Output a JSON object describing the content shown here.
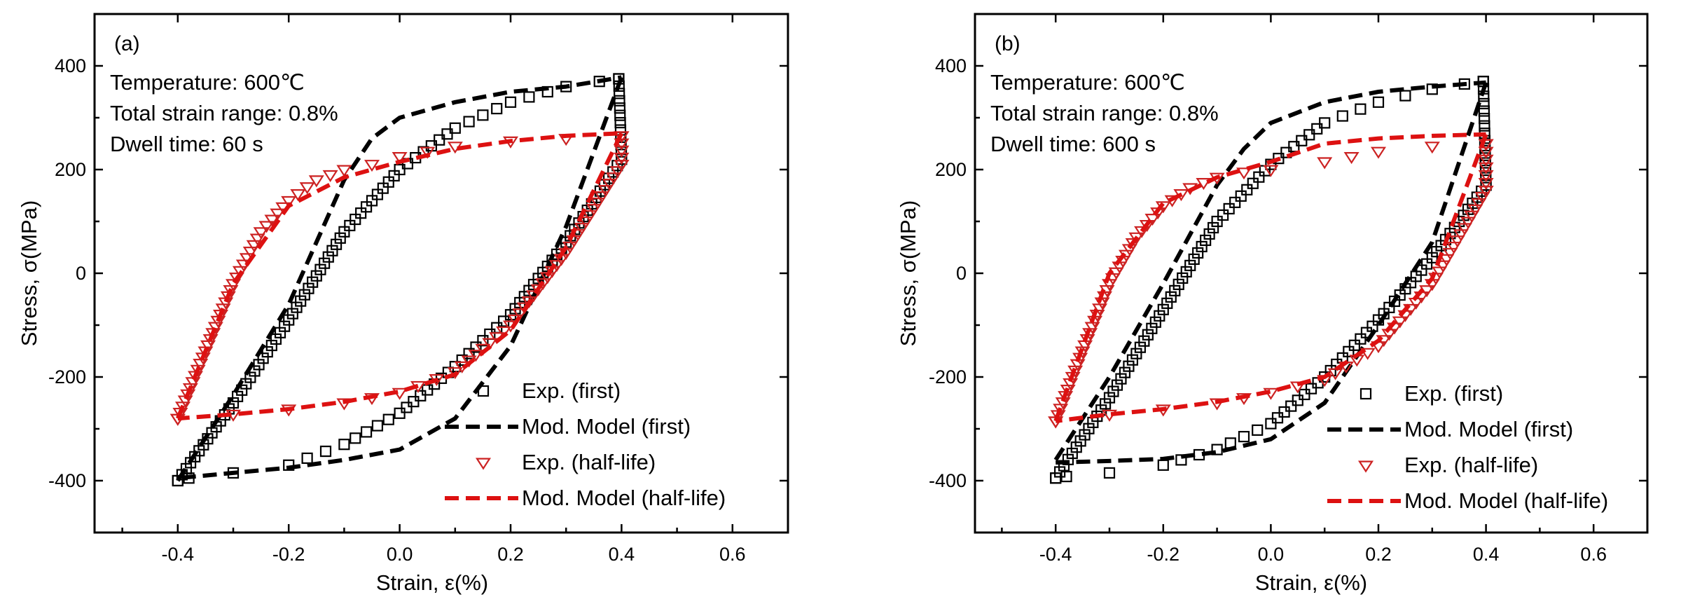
{
  "chart_data": [
    {
      "type": "line",
      "panel_label": "(a)",
      "xlabel": "Strain, ε(%)",
      "ylabel": "Stress, σ(MPa)",
      "xlim": [
        -0.55,
        0.7
      ],
      "ylim": [
        -500,
        500
      ],
      "xticks": [
        -0.4,
        -0.2,
        0.0,
        0.2,
        0.4,
        0.6
      ],
      "xtick_labels": [
        "-0.4",
        "-0.2",
        "0.0",
        "0.2",
        "0.4",
        "0.6"
      ],
      "yticks": [
        -400,
        -200,
        0,
        200,
        400
      ],
      "ytick_labels": [
        "-400",
        "-200",
        "0",
        "200",
        "400"
      ],
      "annotations": [
        "Temperature: 600℃",
        "Total strain range: 0.8%",
        "Dwell time: 60 s"
      ],
      "legend": [
        "Exp. (first)",
        "Mod. Model (first)",
        "Exp. (half-life)",
        "Mod. Model (half-life)"
      ],
      "legend_position": "bottom-right",
      "series": [
        {
          "name": "Exp. (first)",
          "style": "square-marker",
          "color": "#000000",
          "upper": {
            "x": [
              -0.4,
              -0.3,
              -0.2,
              -0.1,
              0.0,
              0.1,
              0.2,
              0.3,
              0.36,
              0.395
            ],
            "y": [
              -400,
              -250,
              -90,
              80,
              200,
              280,
              330,
              360,
              370,
              375
            ]
          },
          "dwell": {
            "x": [
              0.395,
              0.4
            ],
            "y": [
              375,
              220
            ]
          },
          "lower": {
            "x": [
              0.4,
              0.3,
              0.2,
              0.1,
              0.0,
              -0.1,
              -0.2,
              -0.3,
              -0.38,
              -0.4
            ],
            "y": [
              220,
              60,
              -80,
              -180,
              -270,
              -330,
              -370,
              -385,
              -395,
              -400
            ]
          }
        },
        {
          "name": "Mod. Model (first)",
          "style": "dashed",
          "color": "#000000",
          "upper": {
            "x": [
              -0.4,
              -0.3,
              -0.2,
              -0.1,
              -0.05,
              0.0,
              0.1,
              0.2,
              0.3,
              0.4
            ],
            "y": [
              -400,
              -235,
              -60,
              180,
              260,
              300,
              330,
              350,
              360,
              378
            ]
          },
          "lower": {
            "x": [
              0.4,
              0.3,
              0.2,
              0.1,
              0.0,
              -0.1,
              -0.2,
              -0.3,
              -0.4
            ],
            "y": [
              378,
              90,
              -140,
              -280,
              -340,
              -360,
              -375,
              -385,
              -395
            ]
          }
        },
        {
          "name": "Exp. (half-life)",
          "style": "triangle-marker",
          "color": "#cc2222",
          "upper": {
            "x": [
              -0.4,
              -0.35,
              -0.3,
              -0.25,
              -0.2,
              -0.15,
              -0.1,
              -0.05,
              0.0,
              0.1,
              0.2,
              0.3,
              0.4
            ],
            "y": [
              -280,
              -150,
              -20,
              80,
              140,
              180,
              200,
              210,
              225,
              245,
              255,
              260,
              265
            ]
          },
          "dwell": {
            "x": [
              0.4,
              0.4
            ],
            "y": [
              265,
              210
            ]
          },
          "lower": {
            "x": [
              0.4,
              0.3,
              0.2,
              0.1,
              0.0,
              -0.1,
              -0.2,
              -0.3,
              -0.4
            ],
            "y": [
              210,
              40,
              -100,
              -190,
              -230,
              -250,
              -262,
              -272,
              -280
            ]
          }
        },
        {
          "name": "Mod. Model (half-life)",
          "style": "dashed",
          "color": "#dd1111",
          "upper": {
            "x": [
              -0.4,
              -0.3,
              -0.2,
              -0.1,
              0.0,
              0.1,
              0.2,
              0.3,
              0.4
            ],
            "y": [
              -280,
              -20,
              130,
              185,
              215,
              240,
              255,
              265,
              270
            ]
          },
          "lower": {
            "x": [
              0.4,
              0.3,
              0.2,
              0.1,
              0.0,
              -0.1,
              -0.2,
              -0.3,
              -0.4
            ],
            "y": [
              270,
              50,
              -110,
              -195,
              -228,
              -248,
              -262,
              -272,
              -280
            ]
          }
        }
      ]
    },
    {
      "type": "line",
      "panel_label": "(b)",
      "xlabel": "Strain, ε(%)",
      "ylabel": "Stress, σ(MPa)",
      "xlim": [
        -0.55,
        0.7
      ],
      "ylim": [
        -500,
        500
      ],
      "xticks": [
        -0.4,
        -0.2,
        0.0,
        0.2,
        0.4,
        0.6
      ],
      "xtick_labels": [
        "-0.4",
        "-0.2",
        "0.0",
        "0.2",
        "0.4",
        "0.6"
      ],
      "yticks": [
        -400,
        -200,
        0,
        200,
        400
      ],
      "ytick_labels": [
        "-400",
        "-200",
        "0",
        "200",
        "400"
      ],
      "annotations": [
        "Temperature: 600℃",
        "Total strain range: 0.8%",
        "Dwell time: 600 s"
      ],
      "legend": [
        "Exp. (first)",
        "Mod. Model (first)",
        "Exp. (half-life)",
        "Mod. Model (half-life)"
      ],
      "legend_position": "bottom-right",
      "series": [
        {
          "name": "Exp. (first)",
          "style": "square-marker",
          "color": "#000000",
          "upper": {
            "x": [
              -0.4,
              -0.3,
              -0.2,
              -0.1,
              0.0,
              0.1,
              0.2,
              0.3,
              0.36,
              0.395
            ],
            "y": [
              -395,
              -240,
              -70,
              100,
              210,
              290,
              330,
              355,
              365,
              370
            ]
          },
          "dwell": {
            "x": [
              0.395,
              0.4
            ],
            "y": [
              370,
              170
            ]
          },
          "lower": {
            "x": [
              0.4,
              0.3,
              0.2,
              0.1,
              0.0,
              -0.1,
              -0.2,
              -0.3,
              -0.38,
              -0.4
            ],
            "y": [
              170,
              30,
              -90,
              -200,
              -290,
              -340,
              -370,
              -385,
              -392,
              -395
            ]
          }
        },
        {
          "name": "Mod. Model (first)",
          "style": "dashed",
          "color": "#000000",
          "upper": {
            "x": [
              -0.4,
              -0.3,
              -0.2,
              -0.1,
              -0.05,
              0.0,
              0.1,
              0.2,
              0.3,
              0.4
            ],
            "y": [
              -360,
              -200,
              -20,
              170,
              240,
              290,
              330,
              350,
              360,
              368
            ]
          },
          "lower": {
            "x": [
              0.4,
              0.3,
              0.2,
              0.1,
              0.0,
              -0.1,
              -0.2,
              -0.3,
              -0.4
            ],
            "y": [
              368,
              60,
              -100,
              -250,
              -320,
              -345,
              -358,
              -362,
              -365
            ]
          }
        },
        {
          "name": "Exp. (half-life)",
          "style": "triangle-marker",
          "color": "#cc2222",
          "upper": {
            "x": [
              -0.4,
              -0.35,
              -0.3,
              -0.25,
              -0.2,
              -0.15,
              -0.1,
              -0.05,
              0.0,
              0.1,
              0.2,
              0.3,
              0.4
            ],
            "y": [
              -285,
              -150,
              -20,
              70,
              130,
              165,
              185,
              195,
              200,
              215,
              235,
              245,
              250
            ]
          },
          "dwell": {
            "x": [
              0.4,
              0.4
            ],
            "y": [
              250,
              160
            ]
          },
          "lower": {
            "x": [
              0.4,
              0.3,
              0.2,
              0.1,
              0.0,
              -0.1,
              -0.2,
              -0.3,
              -0.4
            ],
            "y": [
              160,
              -20,
              -140,
              -205,
              -230,
              -250,
              -262,
              -272,
              -285
            ]
          }
        },
        {
          "name": "Mod. Model (half-life)",
          "style": "dashed",
          "color": "#dd1111",
          "upper": {
            "x": [
              -0.4,
              -0.3,
              -0.2,
              -0.1,
              0.0,
              0.1,
              0.2,
              0.3,
              0.4
            ],
            "y": [
              -285,
              0,
              135,
              185,
              215,
              250,
              260,
              265,
              268
            ]
          },
          "lower": {
            "x": [
              0.4,
              0.3,
              0.2,
              0.1,
              0.0,
              -0.1,
              -0.2,
              -0.3,
              -0.4
            ],
            "y": [
              268,
              -10,
              -130,
              -200,
              -228,
              -248,
              -262,
              -272,
              -285
            ]
          }
        }
      ]
    }
  ]
}
